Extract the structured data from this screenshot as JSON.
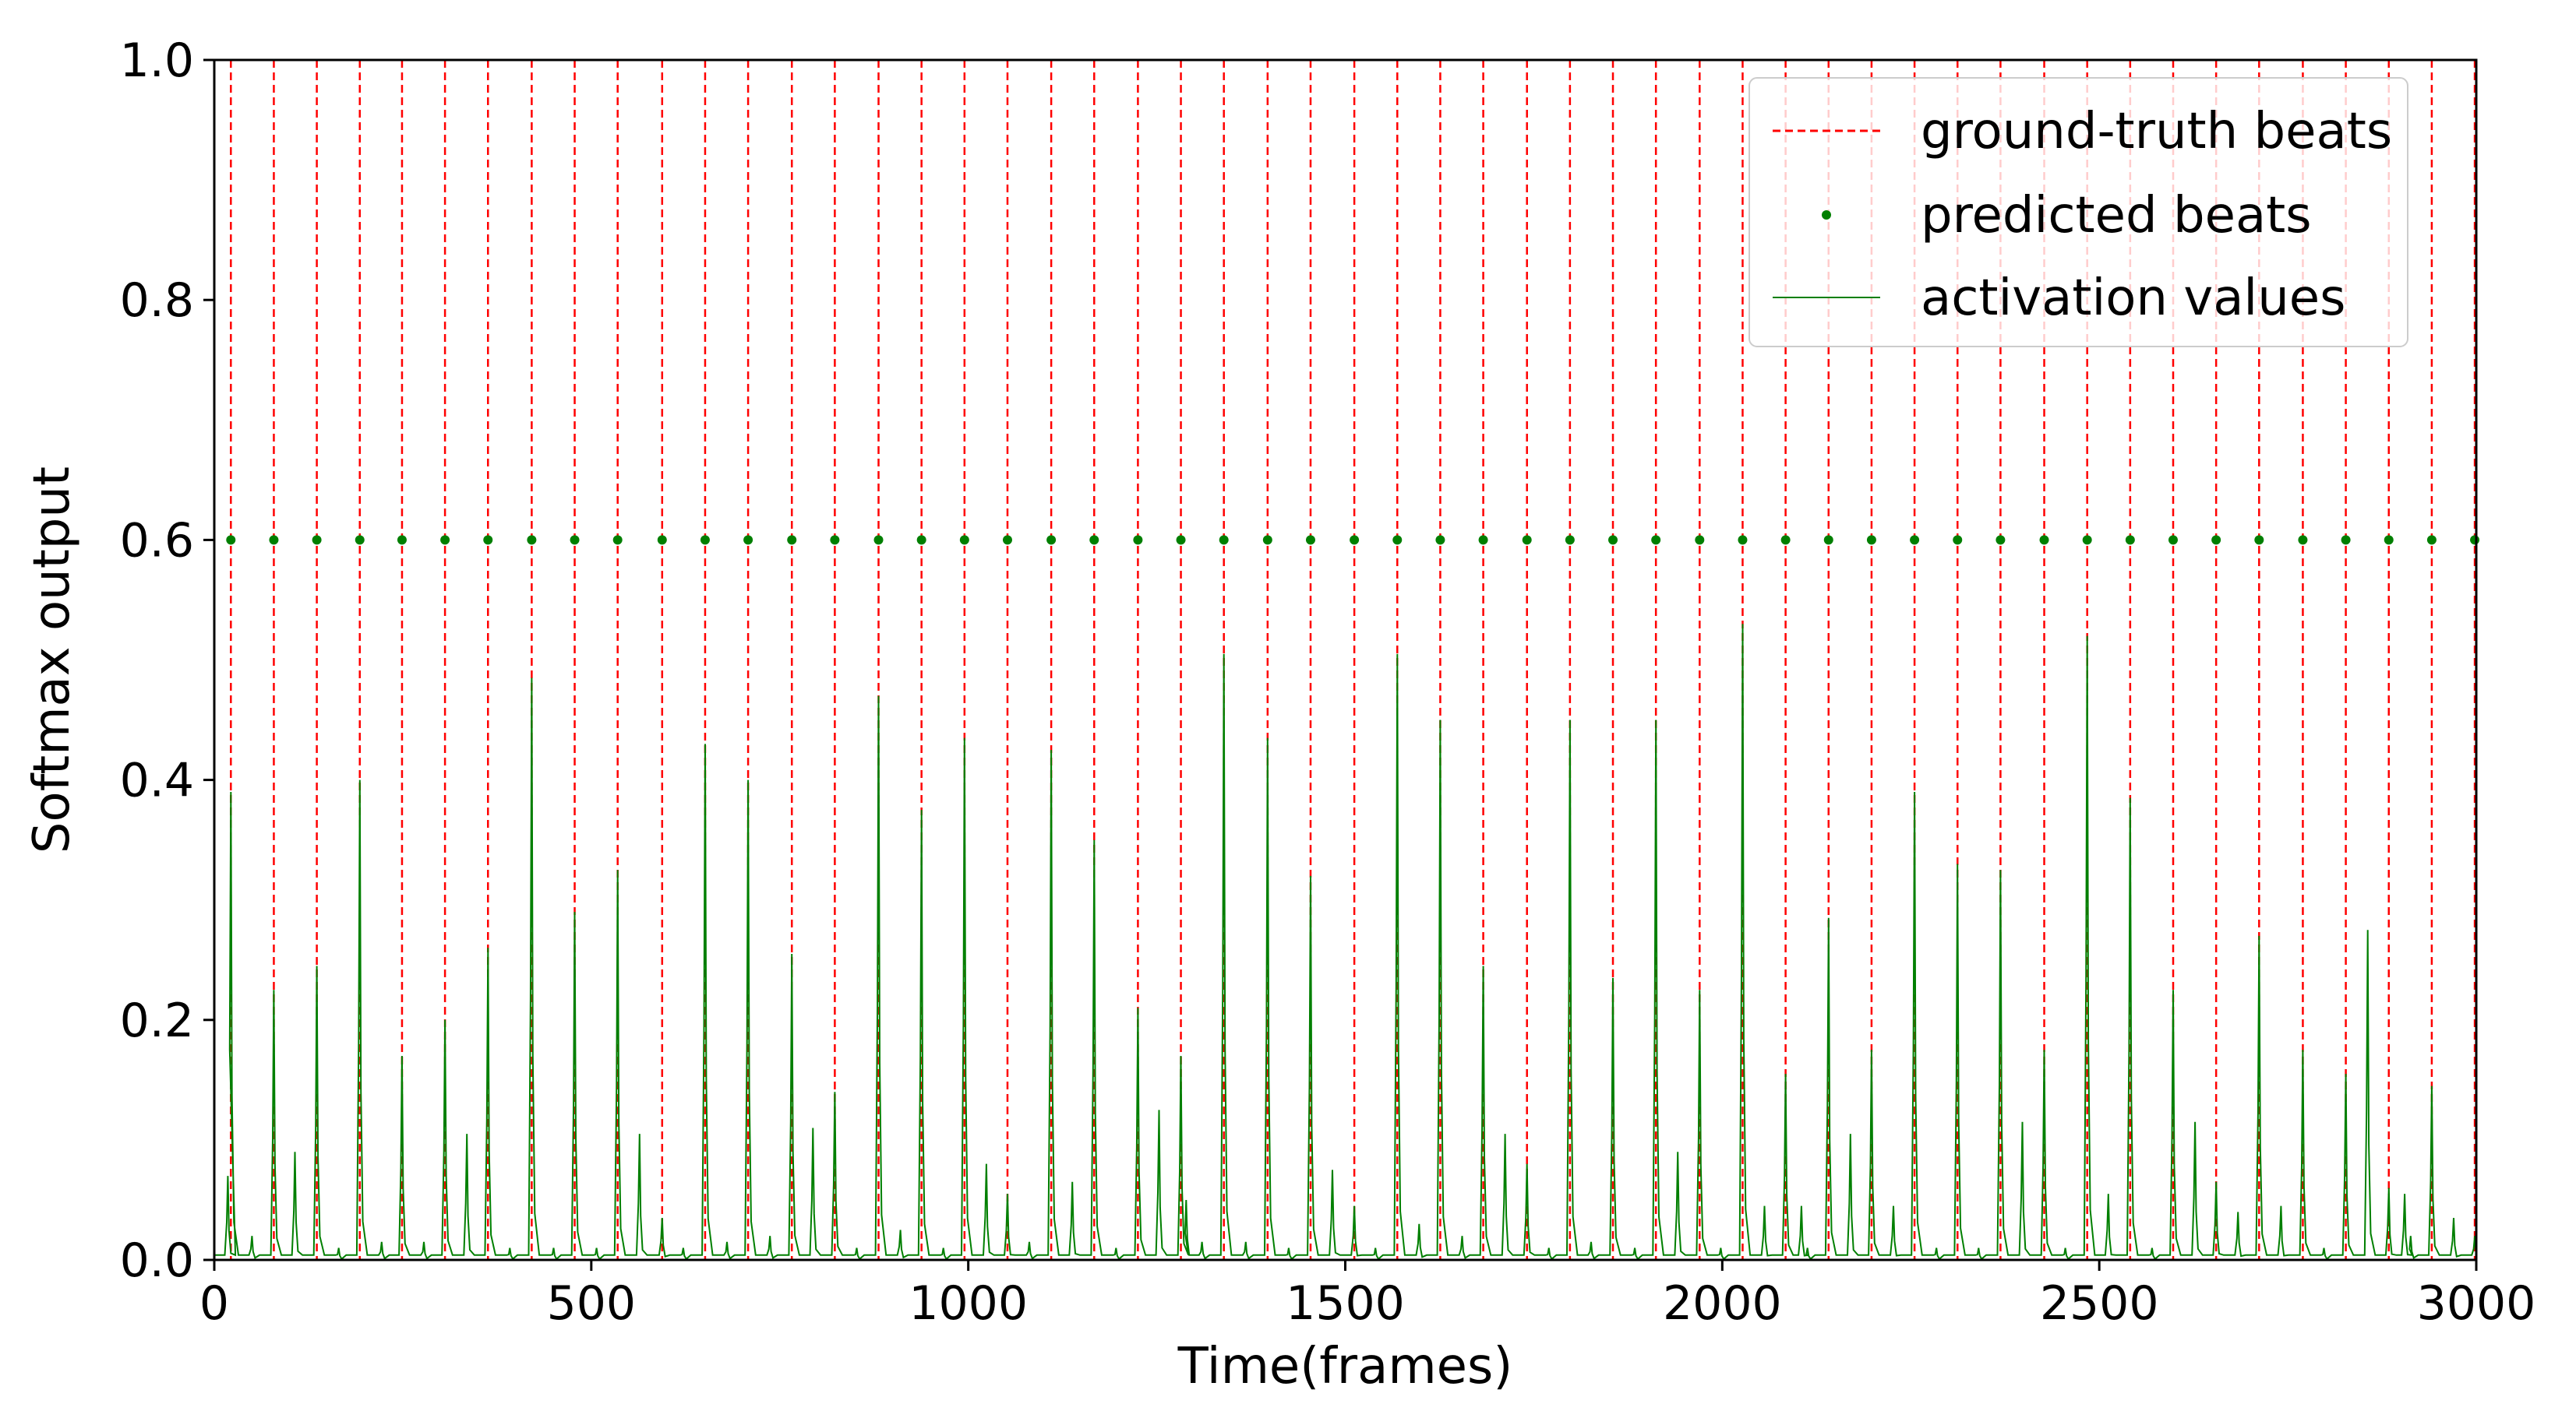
{
  "colors": {
    "ground_truth": "#ff0000",
    "predicted": "#007f00",
    "activation": "#007f00",
    "axis": "#000000",
    "legend_border": "#cccccc"
  },
  "chart_data": {
    "type": "line",
    "title": "",
    "xlabel": "Time(frames)",
    "ylabel": "Softmax output",
    "xlim": [
      0,
      3000
    ],
    "ylim": [
      0,
      1.0
    ],
    "xticks": [
      0,
      500,
      1000,
      1500,
      2000,
      2500,
      3000
    ],
    "xtick_labels": [
      "0",
      "500",
      "1000",
      "1500",
      "2000",
      "2500",
      "3000"
    ],
    "yticks": [
      0.0,
      0.2,
      0.4,
      0.6,
      0.8,
      1.0
    ],
    "ytick_labels": [
      "0.0",
      "0.2",
      "0.4",
      "0.6",
      "0.8",
      "1.0"
    ],
    "grid": false,
    "legend_position": "top-right",
    "legend": [
      {
        "label": "ground-truth beats",
        "style": "dashed-line"
      },
      {
        "label": "predicted beats",
        "style": "marker"
      },
      {
        "label": "activation values",
        "style": "line"
      }
    ],
    "ground_truth_beats": [
      22,
      79,
      136,
      193,
      249,
      306,
      363,
      421,
      478,
      535,
      594,
      651,
      708,
      766,
      823,
      881,
      938,
      995,
      1052,
      1110,
      1167,
      1225,
      1282,
      1339,
      1397,
      1454,
      1512,
      1569,
      1626,
      1683,
      1741,
      1798,
      1855,
      1912,
      1970,
      2027,
      2084,
      2141,
      2198,
      2255,
      2312,
      2369,
      2427,
      2484,
      2541,
      2598,
      2655,
      2712,
      2770,
      2827,
      2884,
      2941,
      2998
    ],
    "predicted_beats": {
      "y": 0.6,
      "x": [
        22,
        79,
        136,
        193,
        249,
        306,
        363,
        421,
        478,
        535,
        594,
        651,
        708,
        766,
        823,
        881,
        938,
        995,
        1052,
        1110,
        1167,
        1225,
        1282,
        1339,
        1397,
        1454,
        1512,
        1569,
        1626,
        1683,
        1741,
        1798,
        1855,
        1912,
        1970,
        2027,
        2084,
        2141,
        2198,
        2255,
        2312,
        2369,
        2427,
        2484,
        2541,
        2598,
        2655,
        2712,
        2770,
        2827,
        2884,
        2941,
        2998
      ]
    },
    "activation_peaks": [
      [
        18,
        0.07
      ],
      [
        22,
        0.39
      ],
      [
        50,
        0.02
      ],
      [
        79,
        0.225
      ],
      [
        107,
        0.09
      ],
      [
        136,
        0.245
      ],
      [
        165,
        0.01
      ],
      [
        193,
        0.4
      ],
      [
        222,
        0.015
      ],
      [
        249,
        0.17
      ],
      [
        278,
        0.015
      ],
      [
        306,
        0.2
      ],
      [
        335,
        0.105
      ],
      [
        363,
        0.26
      ],
      [
        392,
        0.01
      ],
      [
        421,
        0.485
      ],
      [
        450,
        0.01
      ],
      [
        478,
        0.29
      ],
      [
        507,
        0.01
      ],
      [
        535,
        0.325
      ],
      [
        564,
        0.105
      ],
      [
        594,
        0.035
      ],
      [
        622,
        0.01
      ],
      [
        651,
        0.43
      ],
      [
        680,
        0.015
      ],
      [
        708,
        0.4
      ],
      [
        737,
        0.02
      ],
      [
        766,
        0.255
      ],
      [
        794,
        0.11
      ],
      [
        823,
        0.14
      ],
      [
        852,
        0.01
      ],
      [
        881,
        0.47
      ],
      [
        910,
        0.025
      ],
      [
        938,
        0.375
      ],
      [
        967,
        0.01
      ],
      [
        995,
        0.435
      ],
      [
        1024,
        0.08
      ],
      [
        1052,
        0.055
      ],
      [
        1081,
        0.015
      ],
      [
        1110,
        0.425
      ],
      [
        1138,
        0.065
      ],
      [
        1167,
        0.35
      ],
      [
        1196,
        0.01
      ],
      [
        1225,
        0.21
      ],
      [
        1253,
        0.125
      ],
      [
        1282,
        0.17
      ],
      [
        1289,
        0.05
      ],
      [
        1310,
        0.015
      ],
      [
        1339,
        0.505
      ],
      [
        1368,
        0.015
      ],
      [
        1397,
        0.435
      ],
      [
        1425,
        0.01
      ],
      [
        1454,
        0.32
      ],
      [
        1483,
        0.075
      ],
      [
        1512,
        0.045
      ],
      [
        1540,
        0.01
      ],
      [
        1569,
        0.505
      ],
      [
        1598,
        0.03
      ],
      [
        1626,
        0.45
      ],
      [
        1655,
        0.02
      ],
      [
        1683,
        0.245
      ],
      [
        1712,
        0.105
      ],
      [
        1741,
        0.08
      ],
      [
        1770,
        0.01
      ],
      [
        1798,
        0.45
      ],
      [
        1826,
        0.015
      ],
      [
        1855,
        0.235
      ],
      [
        1884,
        0.01
      ],
      [
        1912,
        0.45
      ],
      [
        1941,
        0.09
      ],
      [
        1970,
        0.225
      ],
      [
        1998,
        0.01
      ],
      [
        2027,
        0.53
      ],
      [
        2056,
        0.045
      ],
      [
        2084,
        0.155
      ],
      [
        2105,
        0.045
      ],
      [
        2113,
        0.01
      ],
      [
        2141,
        0.285
      ],
      [
        2170,
        0.105
      ],
      [
        2198,
        0.175
      ],
      [
        2227,
        0.045
      ],
      [
        2255,
        0.39
      ],
      [
        2284,
        0.01
      ],
      [
        2312,
        0.33
      ],
      [
        2340,
        0.01
      ],
      [
        2369,
        0.325
      ],
      [
        2398,
        0.115
      ],
      [
        2427,
        0.175
      ],
      [
        2455,
        0.01
      ],
      [
        2484,
        0.52
      ],
      [
        2512,
        0.055
      ],
      [
        2541,
        0.385
      ],
      [
        2570,
        0.01
      ],
      [
        2598,
        0.225
      ],
      [
        2627,
        0.115
      ],
      [
        2655,
        0.065
      ],
      [
        2684,
        0.04
      ],
      [
        2712,
        0.27
      ],
      [
        2741,
        0.045
      ],
      [
        2770,
        0.175
      ],
      [
        2798,
        0.01
      ],
      [
        2827,
        0.155
      ],
      [
        2856,
        0.275
      ],
      [
        2884,
        0.06
      ],
      [
        2905,
        0.055
      ],
      [
        2913,
        0.02
      ],
      [
        2941,
        0.145
      ],
      [
        2970,
        0.035
      ],
      [
        2998,
        0.02
      ]
    ]
  }
}
